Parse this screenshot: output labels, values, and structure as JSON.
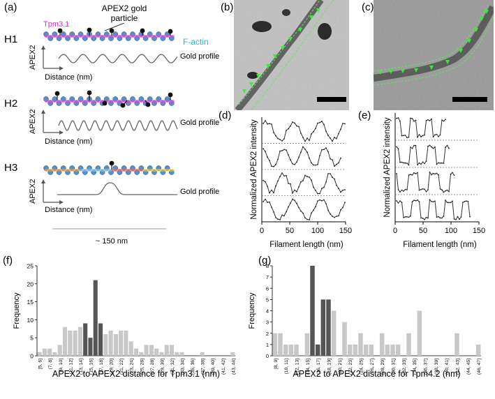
{
  "panels": {
    "a": "(a)",
    "b": "(b)",
    "c": "(c)",
    "d": "(d)",
    "e": "(e)",
    "f": "(f)",
    "g": "(g)"
  },
  "schematic": {
    "apex2_gold_line1": "APEX2 gold",
    "apex2_gold_line2": "particle",
    "tpm_label": "Tpm3.1",
    "factin_label": "F-actin",
    "rows": [
      {
        "label": "H1",
        "ylabel": "APEX2",
        "xlabel": "Distance (nm)",
        "profile": "Gold profile"
      },
      {
        "label": "H2",
        "ylabel": "APEX2",
        "xlabel": "Distance (nm)",
        "profile": "Gold profile"
      },
      {
        "label": "H3",
        "ylabel": "APEX2",
        "xlabel": "Distance (nm)",
        "profile": "Gold profile"
      }
    ],
    "scale_label": "~ 150 nm",
    "colors": {
      "actin": "#5b8fc4",
      "tpm": "#e040e0",
      "factin_text": "#22b8c8",
      "tpm_text": "#e020e0"
    }
  },
  "chart_data": [
    {
      "type": "line",
      "id": "d",
      "ylabel": "Normalized APEX2 intensity",
      "xlabel": "Filament length (nm)",
      "xticks": [
        "0",
        "50",
        "100",
        "150"
      ],
      "xlim": [
        0,
        150
      ]
    },
    {
      "type": "line",
      "id": "e",
      "ylabel": "Normalized APEX2 intensity",
      "xlabel": "Filament length (nm)",
      "xticks": [
        "0",
        "50",
        "100",
        "150"
      ],
      "xlim": [
        0,
        150
      ]
    },
    {
      "type": "bar",
      "id": "f",
      "ylabel": "Frequency",
      "xlabel": "APEX2 to APEX2 distance for Tpm3.1 (nm)",
      "ylim": [
        0,
        25
      ],
      "yticks": [
        "0",
        "5",
        "10",
        "15",
        "20",
        "25"
      ],
      "categories": [
        "[5, 6]",
        "(6, 7]",
        "(7, 8]",
        "(8, 9]",
        "(9, 10]",
        "(10, 11]",
        "(11, 12]",
        "(12, 13]",
        "(13, 14]",
        "(14, 15]",
        "(15, 16]",
        "(16, 17]",
        "(17, 18]",
        "(18, 19]",
        "(19, 20]",
        "(20, 21]",
        "(21, 22]",
        "(22, 23]",
        "(23, 24]",
        "(24, 25]",
        "(25, 26]",
        "(26, 27]",
        "(27, 28]",
        "(28, 29]",
        "(29, 30]",
        "(30, 31]",
        "(31, 32]",
        "(32, 33]",
        "(33, 34]",
        "(34, 35]",
        "(35, 36]",
        "(36, 37]",
        "(37, 38]",
        "(38, 39]",
        "(39, 40]",
        "(40, 41]",
        "(41, 42]",
        "(42, 43]",
        "(43, 44]"
      ],
      "tick_labels": [
        "[5, 6]",
        "(7, 8]",
        "(9, 10]",
        "(11, 12]",
        "(13, 14]",
        "(15, 16]",
        "(17, 18]",
        "(19, 20]",
        "(21, 22]",
        "(23, 24]",
        "(25, 26]",
        "(27, 28]",
        "(29, 30]",
        "(31, 32]",
        "(33, 34]",
        "(35, 36]",
        "(37, 38]",
        "(39, 40]",
        "(41, 42]",
        "(43, 44]"
      ],
      "values": [
        1,
        2,
        2,
        1,
        3,
        8,
        7,
        7,
        8,
        9,
        5,
        21,
        9,
        6,
        7,
        6,
        7,
        7,
        4,
        2,
        1,
        3,
        3,
        2,
        1,
        3,
        3,
        1,
        1,
        0,
        0,
        0,
        1,
        0,
        0,
        0,
        0,
        0,
        1
      ],
      "highlight": [
        9,
        10,
        11,
        12
      ]
    },
    {
      "type": "bar",
      "id": "g",
      "ylabel": "Frequency",
      "xlabel": "APEX2 to APEX2 distance for Tpm4.2 (nm)",
      "ylim": [
        0,
        8
      ],
      "yticks": [
        "0",
        "1",
        "2",
        "3",
        "4",
        "5",
        "6",
        "7",
        "8"
      ],
      "categories": [
        "[8, 9]",
        "(9, 10]",
        "(10, 11]",
        "(11, 12]",
        "(12, 13]",
        "(13, 14]",
        "(14, 15]",
        "(15, 16]",
        "(16, 17]",
        "(17, 18]",
        "(18, 19]",
        "(19, 20]",
        "(20, 21]",
        "(21, 22]",
        "(22, 23]",
        "(23, 24]",
        "(24, 25]",
        "(25, 26]",
        "(26, 27]",
        "(27, 28]",
        "(28, 29]",
        "(29, 30]",
        "(30, 31]",
        "(31, 32]",
        "(32, 33]",
        "(33, 34]",
        "(34, 35]",
        "(35, 36]",
        "(36, 37]",
        "(37, 38]",
        "(38, 39]",
        "(39, 40]",
        "(40, 41]",
        "(41, 42]",
        "(42, 43]",
        "(43, 44]",
        "(44, 45]",
        "(45, 46]",
        "(46, 47]"
      ],
      "tick_labels": [
        "[8, 9]",
        "(10, 11]",
        "(12, 13]",
        "(14, 15]",
        "(16, 17]",
        "(18, 19]",
        "(20, 21]",
        "(22, 23]",
        "(24, 25]",
        "(26, 27]",
        "(28, 29]",
        "(30, 31]",
        "(32, 33]",
        "(34, 35]",
        "(36, 37]",
        "(38, 39]",
        "(40, 41]",
        "(42, 43]",
        "(44, 45]",
        "(46, 47]"
      ],
      "values": [
        2,
        2,
        1,
        1,
        1,
        0,
        2,
        8,
        1,
        5,
        5,
        4,
        0,
        3,
        1,
        1,
        2,
        1,
        1,
        0,
        2,
        1,
        1,
        1,
        0,
        2,
        0,
        4,
        0,
        0,
        0,
        0,
        0,
        0,
        2,
        0,
        0,
        0,
        1
      ],
      "highlight": [
        7,
        8,
        9,
        10
      ]
    }
  ],
  "scale_bar_color": "#000000",
  "marker_color": "#3ee83e",
  "bar_light": "#c8c8c8",
  "bar_dark": "#555555"
}
